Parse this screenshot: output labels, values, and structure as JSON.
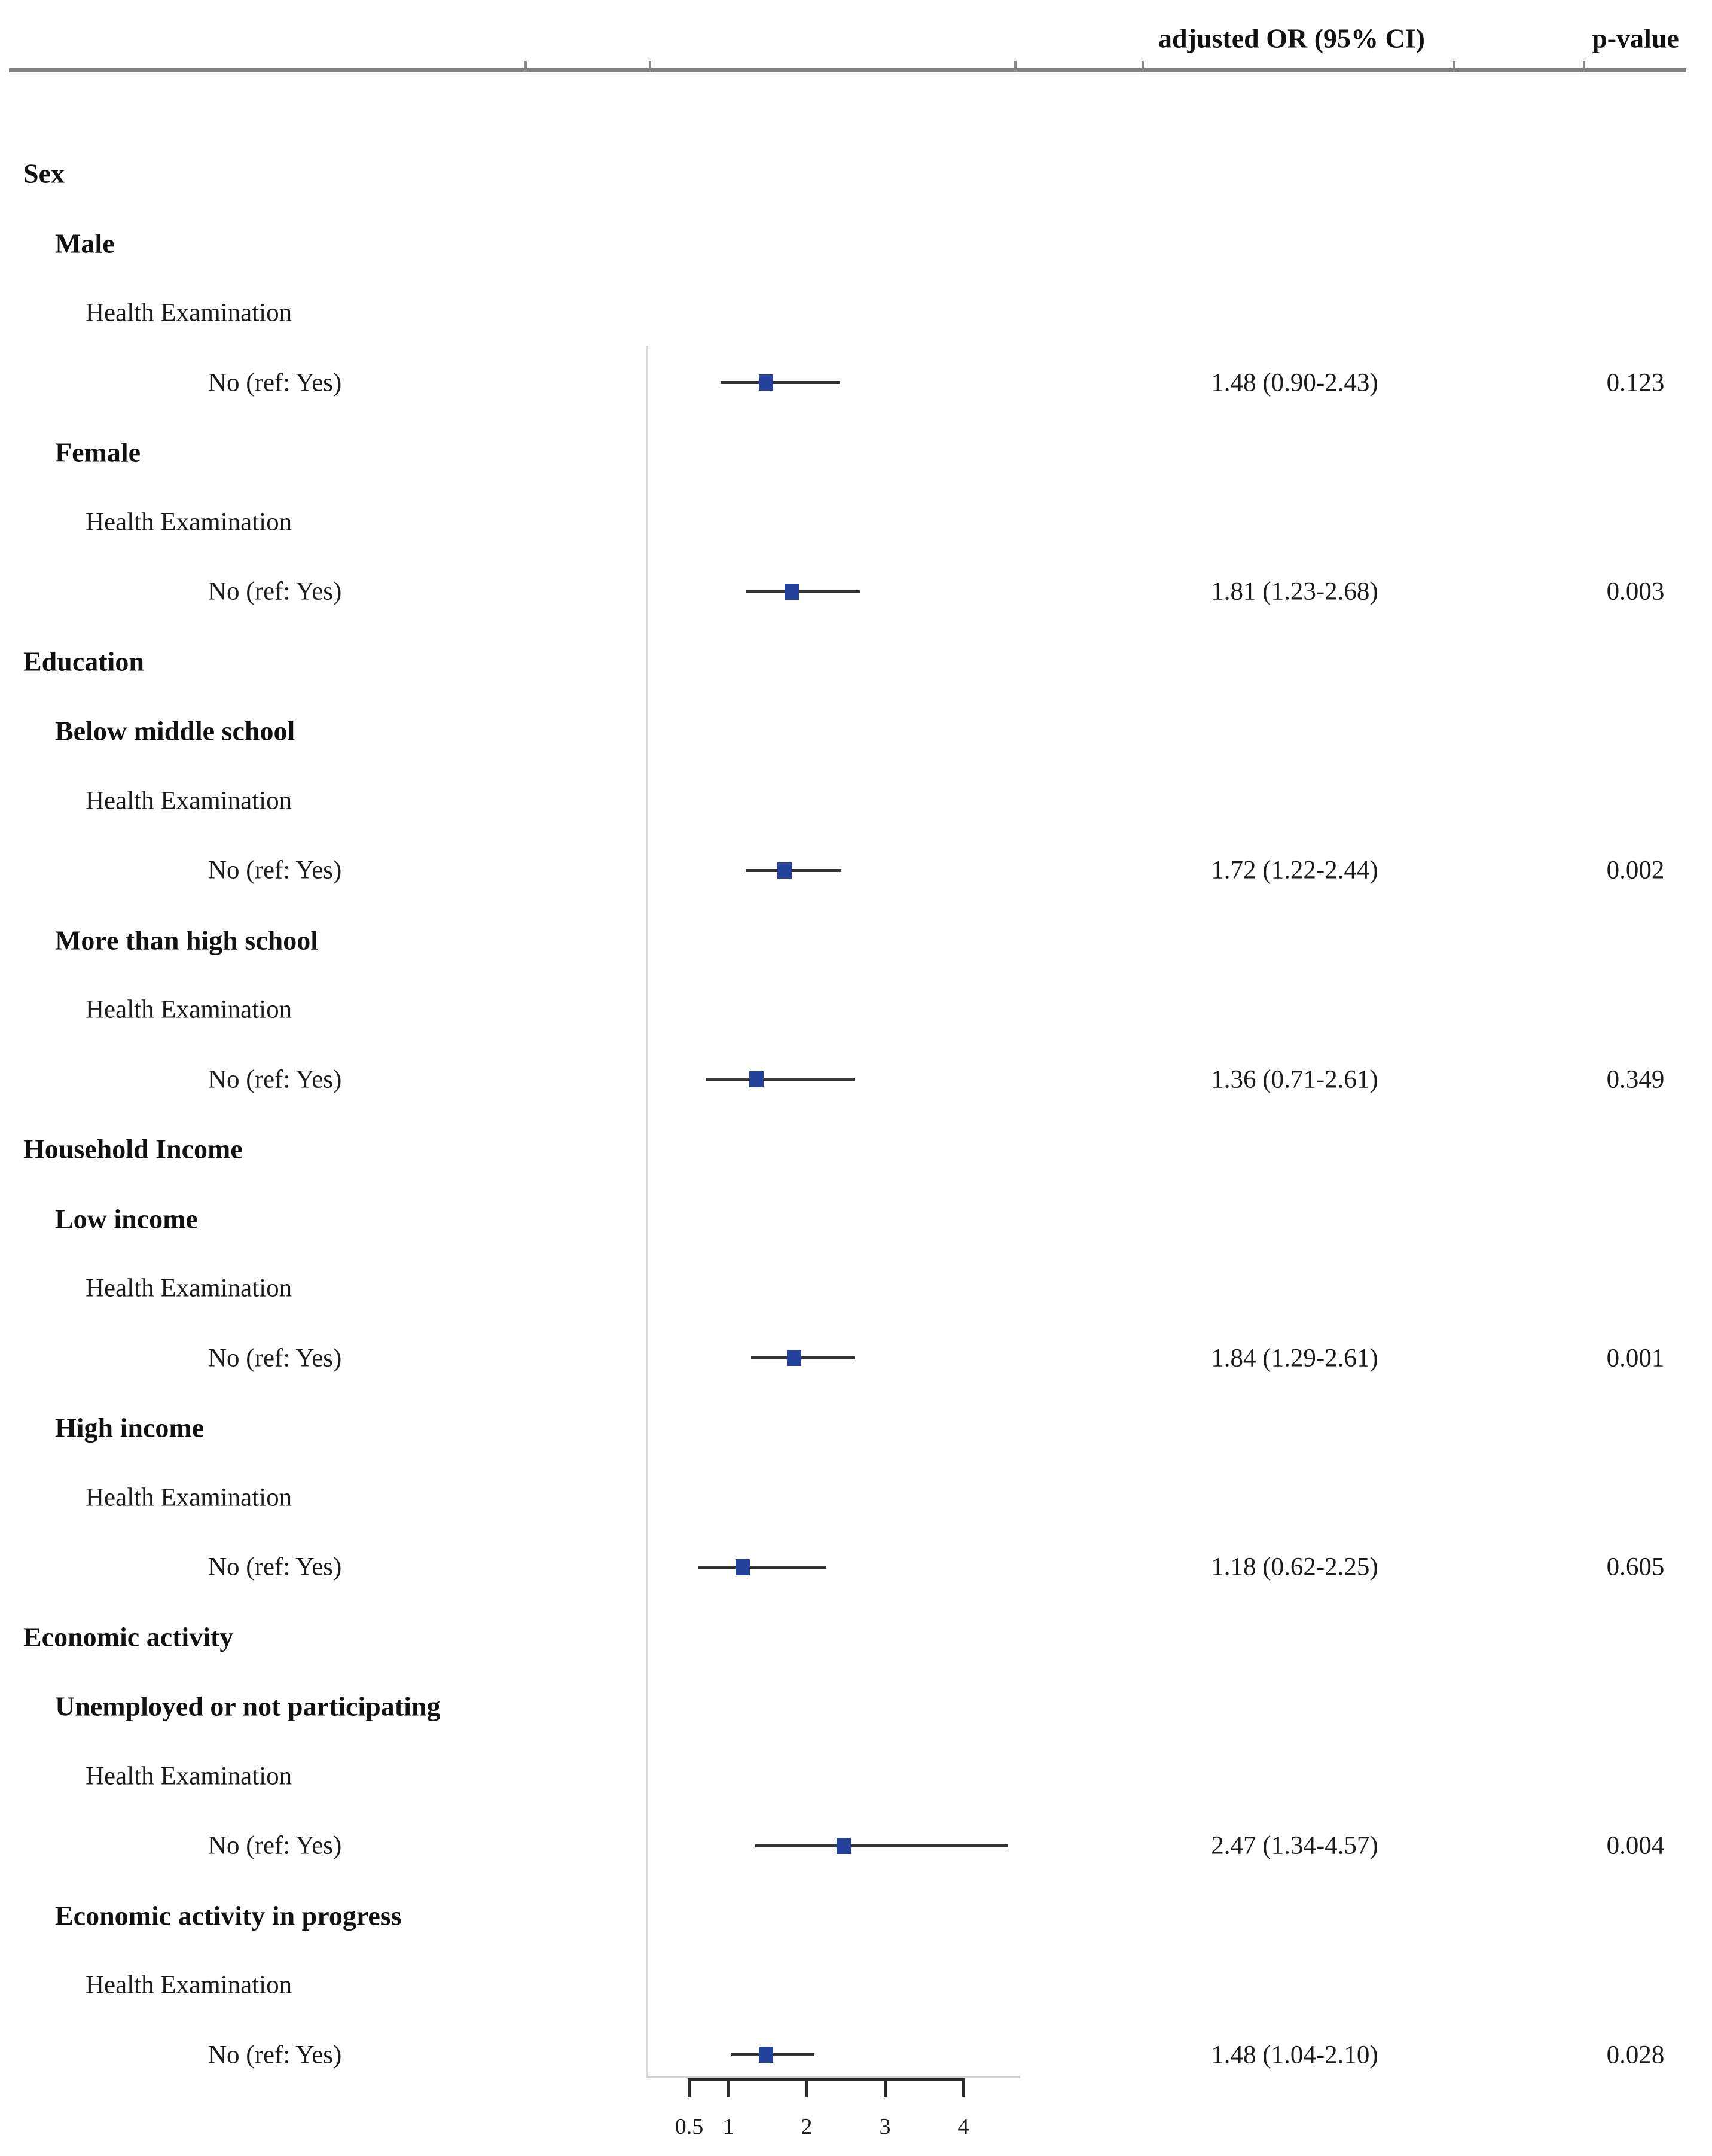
{
  "header": {
    "or_header": "adjusted OR (95% CI)",
    "p_header": "p-value"
  },
  "colors": {
    "marker": "#24419c",
    "ci_line": "#333333",
    "panel_line": "#d9d9d9",
    "header_rule": "#7f7f7f",
    "axis": "#2b2b2b",
    "text": "#111111"
  },
  "chart_data": {
    "type": "forest",
    "title": "",
    "estimate_column_header": "adjusted OR (95% CI)",
    "p_column_header": "p-value",
    "measure_label": "Health Examination",
    "row_label": "No (ref: Yes)",
    "x_axis": {
      "scale": "linear",
      "xlim": [
        0.5,
        4
      ],
      "tick_values": [
        0.5,
        1,
        2,
        3,
        4
      ],
      "tick_labels": [
        "0.5",
        "1",
        "2",
        "3",
        "4"
      ]
    },
    "sections": [
      {
        "section": "Sex",
        "groups": [
          {
            "group": "Male",
            "or": 1.48,
            "ci_low": 0.9,
            "ci_high": 2.43,
            "or_text": "1.48 (0.90-2.43)",
            "p_text": "0.123"
          },
          {
            "group": "Female",
            "or": 1.81,
            "ci_low": 1.23,
            "ci_high": 2.68,
            "or_text": "1.81 (1.23-2.68)",
            "p_text": "0.003"
          }
        ]
      },
      {
        "section": "Education",
        "groups": [
          {
            "group": "Below middle school",
            "or": 1.72,
            "ci_low": 1.22,
            "ci_high": 2.44,
            "or_text": "1.72 (1.22-2.44)",
            "p_text": "0.002"
          },
          {
            "group": "More than high school",
            "or": 1.36,
            "ci_low": 0.71,
            "ci_high": 2.61,
            "or_text": "1.36 (0.71-2.61)",
            "p_text": "0.349"
          }
        ]
      },
      {
        "section": "Household Income",
        "groups": [
          {
            "group": "Low income",
            "or": 1.84,
            "ci_low": 1.29,
            "ci_high": 2.61,
            "or_text": "1.84 (1.29-2.61)",
            "p_text": "0.001"
          },
          {
            "group": "High income",
            "or": 1.18,
            "ci_low": 0.62,
            "ci_high": 2.25,
            "or_text": "1.18 (0.62-2.25)",
            "p_text": "0.605"
          }
        ]
      },
      {
        "section": "Economic activity",
        "groups": [
          {
            "group": "Unemployed or not participating",
            "or": 2.47,
            "ci_low": 1.34,
            "ci_high": 4.57,
            "or_text": "2.47 (1.34-4.57)",
            "p_text": "0.004"
          },
          {
            "group": "Economic activity in progress",
            "or": 1.48,
            "ci_low": 1.04,
            "ci_high": 2.1,
            "or_text": "1.48 (1.04-2.10)",
            "p_text": "0.028"
          }
        ]
      }
    ]
  }
}
